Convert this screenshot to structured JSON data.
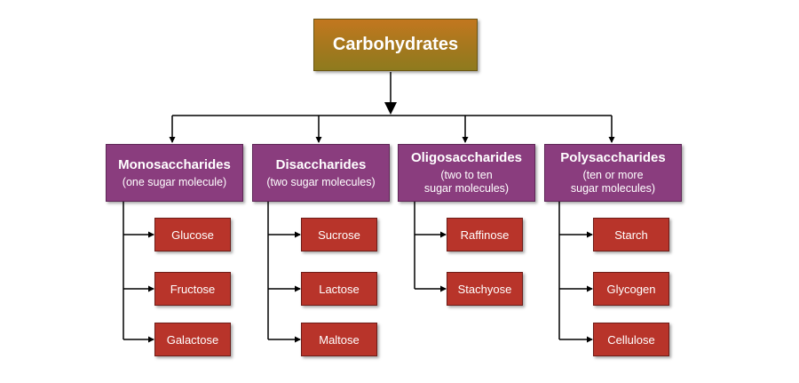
{
  "root": {
    "label": "Carbohydrates"
  },
  "categories": [
    {
      "title": "Monosaccharides",
      "subtitle": "(one sugar molecule)",
      "items": [
        "Glucose",
        "Fructose",
        "Galactose"
      ]
    },
    {
      "title": "Disaccharides",
      "subtitle": "(two sugar molecules)",
      "items": [
        "Sucrose",
        "Lactose",
        "Maltose"
      ]
    },
    {
      "title": "Oligosaccharides",
      "subtitle": "(two to ten\nsugar molecules)",
      "items": [
        "Raffinose",
        "Stachyose"
      ]
    },
    {
      "title": "Polysaccharides",
      "subtitle": "(ten or more\nsugar molecules)",
      "items": [
        "Starch",
        "Glycogen",
        "Cellulose"
      ]
    }
  ],
  "colors": {
    "root": "#a4781e",
    "category": "#8a3d7e",
    "item": "#b8342a",
    "line": "#000000"
  }
}
